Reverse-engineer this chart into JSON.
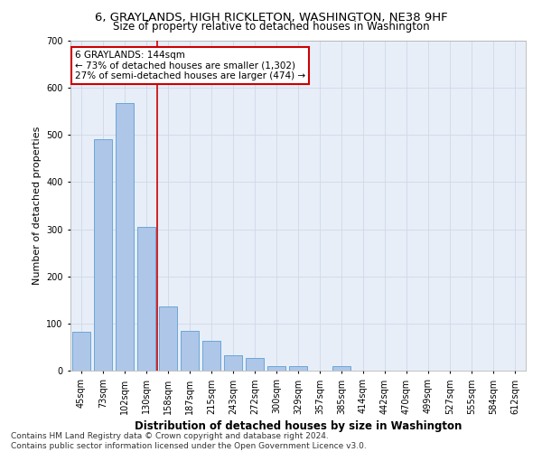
{
  "title_line1": "6, GRAYLANDS, HIGH RICKLETON, WASHINGTON, NE38 9HF",
  "title_line2": "Size of property relative to detached houses in Washington",
  "xlabel": "Distribution of detached houses by size in Washington",
  "ylabel": "Number of detached properties",
  "categories": [
    "45sqm",
    "73sqm",
    "102sqm",
    "130sqm",
    "158sqm",
    "187sqm",
    "215sqm",
    "243sqm",
    "272sqm",
    "300sqm",
    "329sqm",
    "357sqm",
    "385sqm",
    "414sqm",
    "442sqm",
    "470sqm",
    "499sqm",
    "527sqm",
    "555sqm",
    "584sqm",
    "612sqm"
  ],
  "values": [
    82,
    490,
    568,
    304,
    136,
    84,
    63,
    32,
    26,
    10,
    10,
    0,
    10,
    0,
    0,
    0,
    0,
    0,
    0,
    0,
    0
  ],
  "bar_color": "#aec6e8",
  "bar_edgecolor": "#5a9fd4",
  "vline_x": 3.5,
  "vline_color": "#cc0000",
  "annotation_text": "6 GRAYLANDS: 144sqm\n← 73% of detached houses are smaller (1,302)\n27% of semi-detached houses are larger (474) →",
  "annotation_box_color": "#ffffff",
  "annotation_box_edgecolor": "#cc0000",
  "ylim": [
    0,
    700
  ],
  "yticks": [
    0,
    100,
    200,
    300,
    400,
    500,
    600,
    700
  ],
  "grid_color": "#d0d8e8",
  "background_color": "#e8eef8",
  "footer_line1": "Contains HM Land Registry data © Crown copyright and database right 2024.",
  "footer_line2": "Contains public sector information licensed under the Open Government Licence v3.0.",
  "title_fontsize": 9.5,
  "subtitle_fontsize": 8.5,
  "xlabel_fontsize": 8.5,
  "ylabel_fontsize": 8,
  "tick_fontsize": 7,
  "footer_fontsize": 6.5,
  "annotation_fontsize": 7.5
}
